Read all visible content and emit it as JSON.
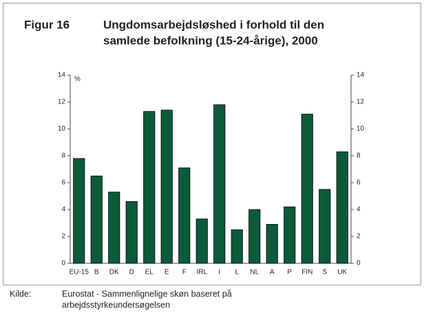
{
  "chart_data": {
    "type": "bar",
    "figure_label": "Figur 16",
    "title": [
      "Ungdomsarbejdsløshed i forhold til den",
      "samlede befolkning (15-24-årige), 2000"
    ],
    "y_unit": "%",
    "categories": [
      "EU-15",
      "B",
      "DK",
      "D",
      "EL",
      "E",
      "F",
      "IRL",
      "I",
      "L",
      "NL",
      "A",
      "P",
      "FIN",
      "S",
      "UK"
    ],
    "values": [
      7.8,
      6.5,
      5.3,
      4.6,
      11.3,
      11.4,
      7.1,
      3.3,
      11.8,
      2.5,
      4.0,
      2.9,
      4.2,
      11.1,
      5.5,
      8.3
    ],
    "color": "#0b5a3c",
    "ylim": [
      0,
      14
    ],
    "yticks": [
      0,
      2,
      4,
      6,
      8,
      10,
      12,
      14
    ],
    "y2lim": [
      0,
      14
    ],
    "y2ticks": [
      0,
      2,
      4,
      6,
      8,
      10,
      12,
      14
    ],
    "grid": false,
    "source_label": "Kilde:",
    "source": [
      "Eurostat - Sammenlignelige skøn baseret på",
      "arbejdsstyrkeundersøgelsen"
    ]
  }
}
